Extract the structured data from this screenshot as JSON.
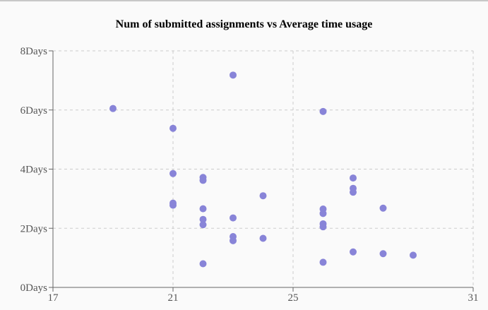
{
  "chart_data": {
    "type": "scatter",
    "title": "Num of submitted assignments vs Average time usage",
    "xlabel": "",
    "ylabel": "",
    "xlim": [
      17,
      31
    ],
    "ylim": [
      0,
      8
    ],
    "x_ticks": [
      17,
      21,
      25,
      31
    ],
    "y_ticks": [
      0,
      2,
      4,
      6,
      8
    ],
    "y_tick_suffix": "Days",
    "grid": true,
    "point_color": "#8884d8",
    "series": [
      {
        "points": [
          {
            "x": 19,
            "y": 6.05
          },
          {
            "x": 21,
            "y": 5.38
          },
          {
            "x": 21,
            "y": 3.85
          },
          {
            "x": 21,
            "y": 2.85
          },
          {
            "x": 21,
            "y": 2.78
          },
          {
            "x": 22,
            "y": 3.72
          },
          {
            "x": 22,
            "y": 3.62
          },
          {
            "x": 22,
            "y": 2.66
          },
          {
            "x": 22,
            "y": 2.3
          },
          {
            "x": 22,
            "y": 2.12
          },
          {
            "x": 22,
            "y": 0.8
          },
          {
            "x": 23,
            "y": 7.18
          },
          {
            "x": 23,
            "y": 2.35
          },
          {
            "x": 23,
            "y": 1.72
          },
          {
            "x": 23,
            "y": 1.58
          },
          {
            "x": 24,
            "y": 3.1
          },
          {
            "x": 24,
            "y": 1.66
          },
          {
            "x": 26,
            "y": 5.95
          },
          {
            "x": 26,
            "y": 2.65
          },
          {
            "x": 26,
            "y": 2.5
          },
          {
            "x": 26,
            "y": 2.15
          },
          {
            "x": 26,
            "y": 2.05
          },
          {
            "x": 26,
            "y": 0.85
          },
          {
            "x": 27,
            "y": 3.7
          },
          {
            "x": 27,
            "y": 3.35
          },
          {
            "x": 27,
            "y": 3.22
          },
          {
            "x": 27,
            "y": 1.2
          },
          {
            "x": 28,
            "y": 2.68
          },
          {
            "x": 28,
            "y": 1.14
          },
          {
            "x": 29,
            "y": 1.09
          }
        ]
      }
    ]
  }
}
